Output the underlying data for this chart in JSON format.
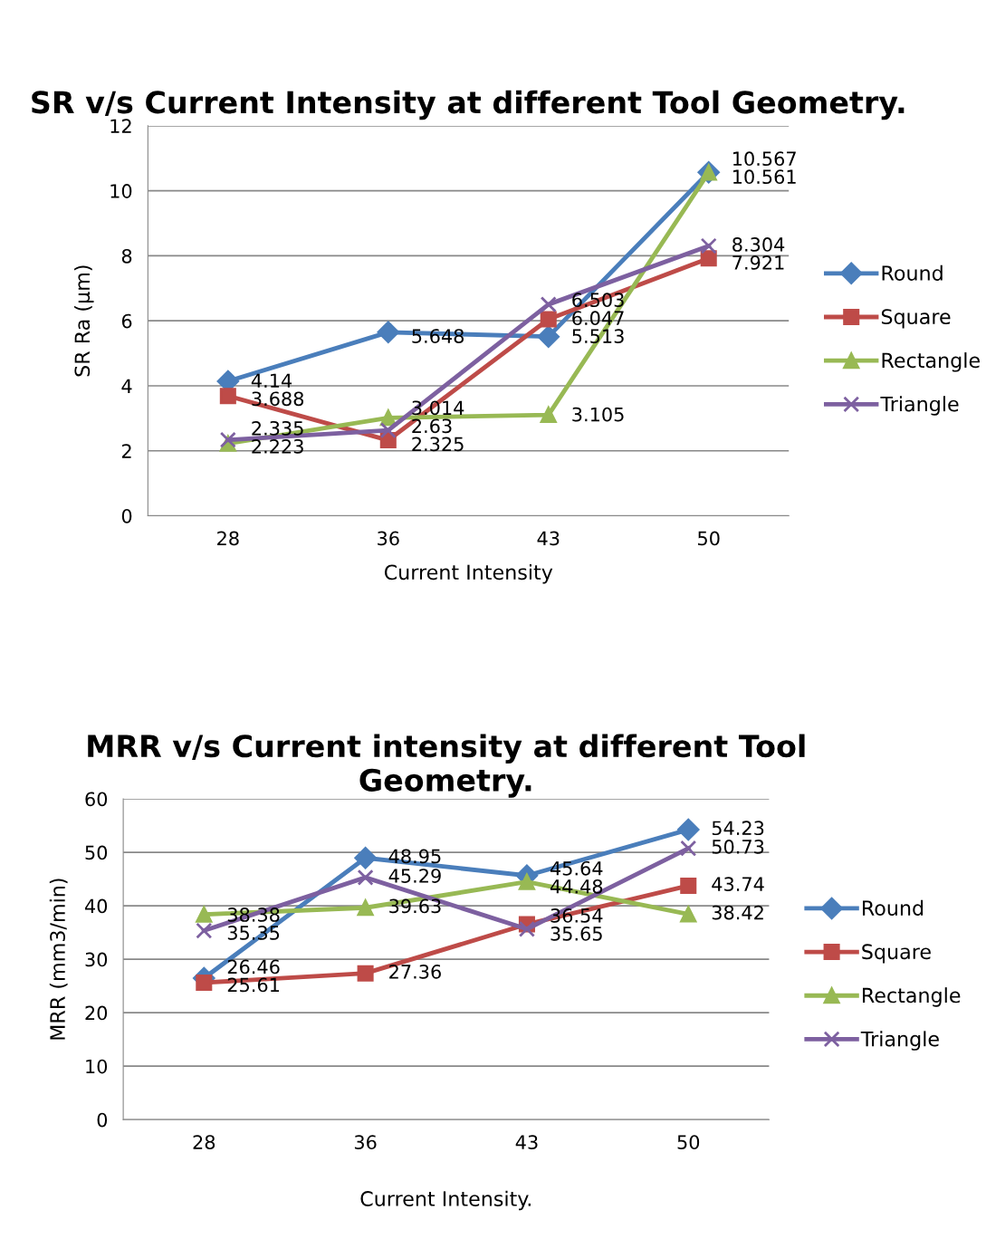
{
  "chart_data": [
    {
      "type": "line",
      "title": "SR v/s Current Intensity at different Tool Geometry.",
      "xlabel": "Current Intensity",
      "ylabel": "SR Ra (µm)",
      "categories": [
        "28",
        "36",
        "43",
        "50"
      ],
      "ylim": [
        0,
        12
      ],
      "yticks": [
        0,
        2,
        4,
        6,
        8,
        10,
        12
      ],
      "grid": "y",
      "legend": "right",
      "data_labels": true,
      "series": [
        {
          "name": "Round",
          "color": "#4a7ebb",
          "marker": "diamond",
          "values": [
            4.14,
            5.648,
            5.513,
            10.567
          ]
        },
        {
          "name": "Square",
          "color": "#be4b48",
          "marker": "square",
          "values": [
            3.688,
            2.325,
            6.047,
            7.921
          ]
        },
        {
          "name": "Rectangle",
          "color": "#98b954",
          "marker": "triangle",
          "values": [
            2.223,
            3.014,
            3.105,
            10.561
          ]
        },
        {
          "name": "Triangle",
          "color": "#7d60a0",
          "marker": "cross",
          "values": [
            2.335,
            2.63,
            6.503,
            8.304
          ]
        }
      ]
    },
    {
      "type": "line",
      "title": "MRR v/s Current intensity at different Tool Geometry.",
      "xlabel": "Current Intensity.",
      "ylabel": "MRR (mm3/min)",
      "categories": [
        "28",
        "36",
        "43",
        "50"
      ],
      "ylim": [
        0,
        60
      ],
      "yticks": [
        0,
        10,
        20,
        30,
        40,
        50,
        60
      ],
      "grid": "y",
      "legend": "right",
      "data_labels": true,
      "series": [
        {
          "name": "Round",
          "color": "#4a7ebb",
          "marker": "diamond",
          "values": [
            26.46,
            48.95,
            45.64,
            54.23
          ]
        },
        {
          "name": "Square",
          "color": "#be4b48",
          "marker": "square",
          "values": [
            25.61,
            27.36,
            36.54,
            43.74
          ]
        },
        {
          "name": "Rectangle",
          "color": "#98b954",
          "marker": "triangle",
          "values": [
            38.38,
            39.63,
            44.48,
            38.42
          ]
        },
        {
          "name": "Triangle",
          "color": "#7d60a0",
          "marker": "cross",
          "values": [
            35.35,
            45.29,
            35.65,
            50.73
          ]
        }
      ]
    }
  ]
}
